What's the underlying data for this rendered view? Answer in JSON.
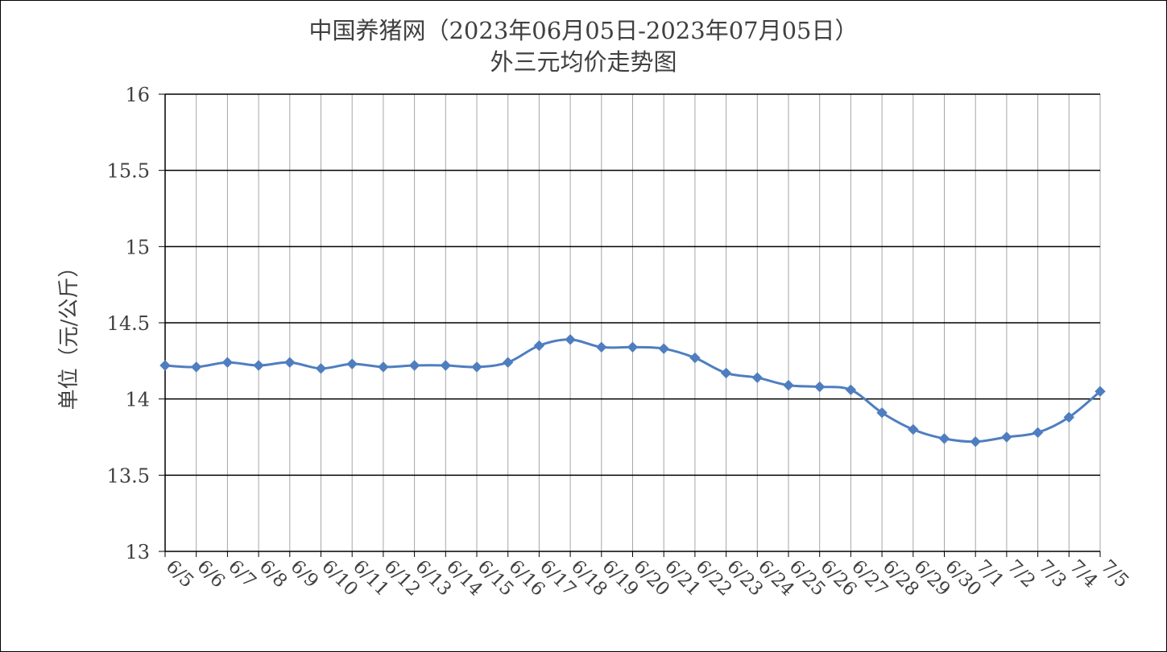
{
  "chart_data": {
    "type": "line",
    "title": "中国养猪网（2023年06月05日-2023年07月05日）",
    "subtitle": "外三元均价走势图",
    "ylabel": "单位（元/公斤）",
    "xlabel": "",
    "ylim": [
      13,
      16
    ],
    "yticks": [
      "13",
      "13.5",
      "14",
      "14.5",
      "15",
      "15.5",
      "16"
    ],
    "grid": "on",
    "legend": "none",
    "line_color": "#4f7ec0",
    "categories": [
      "6/5",
      "6/6",
      "6/7",
      "6/8",
      "6/9",
      "6/10",
      "6/11",
      "6/12",
      "6/13",
      "6/14",
      "6/15",
      "6/16",
      "6/17",
      "6/18",
      "6/19",
      "6/20",
      "6/21",
      "6/22",
      "6/23",
      "6/24",
      "6/25",
      "6/26",
      "6/27",
      "6/28",
      "6/29",
      "6/30",
      "7/1",
      "7/2",
      "7/3",
      "7/4",
      "7/5"
    ],
    "series": [
      {
        "values": [
          14.22,
          14.21,
          14.24,
          14.22,
          14.24,
          14.2,
          14.23,
          14.21,
          14.22,
          14.22,
          14.21,
          14.24,
          14.35,
          14.39,
          14.34,
          14.34,
          14.33,
          14.27,
          14.17,
          14.14,
          14.09,
          14.08,
          14.06,
          13.91,
          13.8,
          13.74,
          13.72,
          13.75,
          13.78,
          13.88,
          14.05
        ]
      }
    ]
  }
}
